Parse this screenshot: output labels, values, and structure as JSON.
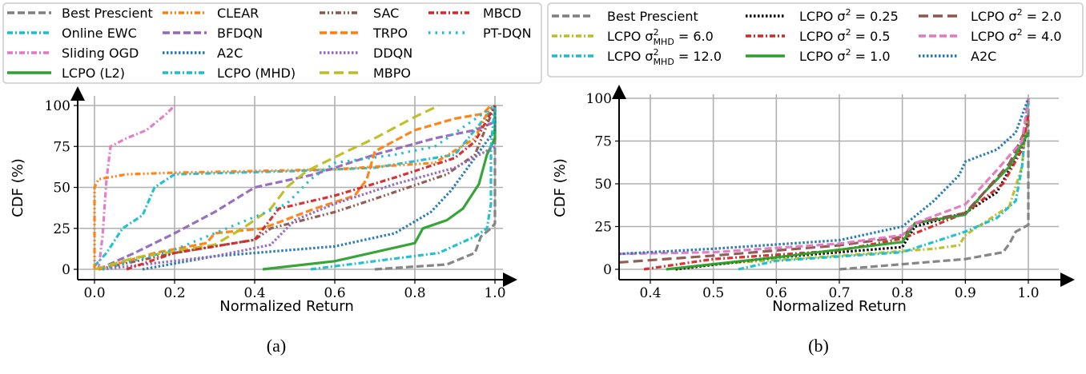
{
  "chart_data": [
    {
      "type": "line",
      "caption": "(a)",
      "xlabel": "Normalized Return",
      "ylabel": "CDF (%)",
      "xlim": [
        -0.04,
        1.04
      ],
      "ylim": [
        0,
        100
      ],
      "xticks": [
        "0.0",
        "0.2",
        "0.4",
        "0.6",
        "0.8",
        "1.0"
      ],
      "yticks": [
        "0",
        "25",
        "50",
        "75",
        "100"
      ],
      "grid": true,
      "legend_position": "top",
      "series": [
        {
          "name": "Best Prescient",
          "color": "#7f7f7f",
          "style": "dashed",
          "points": [
            [
              0.7,
              0
            ],
            [
              0.88,
              3
            ],
            [
              0.95,
              10
            ],
            [
              0.965,
              20
            ],
            [
              0.99,
              25
            ],
            [
              1.0,
              28
            ],
            [
              1.0,
              100
            ]
          ]
        },
        {
          "name": "Online EWC",
          "color": "#17becf",
          "style": "dashdot",
          "points": [
            [
              0.0,
              2
            ],
            [
              0.03,
              10
            ],
            [
              0.07,
              25
            ],
            [
              0.12,
              33
            ],
            [
              0.15,
              50
            ],
            [
              0.2,
              58
            ],
            [
              0.5,
              60
            ],
            [
              0.7,
              62
            ],
            [
              0.9,
              70
            ],
            [
              1.0,
              100
            ]
          ]
        },
        {
          "name": "Sliding OGD",
          "color": "#e377c2",
          "style": "dashdot",
          "points": [
            [
              0.01,
              0
            ],
            [
              0.02,
              20
            ],
            [
              0.03,
              55
            ],
            [
              0.04,
              75
            ],
            [
              0.08,
              80
            ],
            [
              0.13,
              85
            ],
            [
              0.18,
              95
            ],
            [
              0.2,
              100
            ]
          ]
        },
        {
          "name": "LCPO (L2)",
          "color": "#2ca02c",
          "style": "solid",
          "points": [
            [
              0.42,
              0
            ],
            [
              0.6,
              5
            ],
            [
              0.8,
              16
            ],
            [
              0.82,
              25
            ],
            [
              0.88,
              30
            ],
            [
              0.92,
              37
            ],
            [
              0.96,
              52
            ],
            [
              0.98,
              70
            ],
            [
              1.0,
              80
            ],
            [
              1.0,
              100
            ]
          ]
        },
        {
          "name": "CLEAR",
          "color": "#ff7f0e",
          "style": "dashdotdot",
          "points": [
            [
              0.0,
              0
            ],
            [
              0.0,
              50
            ],
            [
              0.01,
              55
            ],
            [
              0.08,
              58
            ],
            [
              0.2,
              59
            ],
            [
              0.6,
              61
            ],
            [
              0.85,
              65
            ],
            [
              0.95,
              80
            ],
            [
              0.99,
              100
            ]
          ]
        },
        {
          "name": "BFDQN",
          "color": "#9467bd",
          "style": "dashed",
          "points": [
            [
              0.01,
              0
            ],
            [
              0.1,
              10
            ],
            [
              0.2,
              22
            ],
            [
              0.3,
              35
            ],
            [
              0.4,
              50
            ],
            [
              0.55,
              58
            ],
            [
              0.7,
              70
            ],
            [
              0.85,
              80
            ],
            [
              0.95,
              85
            ],
            [
              1.0,
              90
            ]
          ]
        },
        {
          "name": "A2C",
          "color": "#1f77b4",
          "style": "dotted",
          "points": [
            [
              0.12,
              0
            ],
            [
              0.3,
              8
            ],
            [
              0.4,
              10
            ],
            [
              0.6,
              14
            ],
            [
              0.75,
              22
            ],
            [
              0.84,
              35
            ],
            [
              0.89,
              48
            ],
            [
              0.92,
              58
            ],
            [
              1.0,
              85
            ],
            [
              1.0,
              100
            ]
          ]
        },
        {
          "name": "LCPO (MHD)",
          "color": "#17becf",
          "style": "dashdot",
          "points": [
            [
              0.54,
              0
            ],
            [
              0.7,
              5
            ],
            [
              0.86,
              10
            ],
            [
              0.95,
              20
            ],
            [
              0.98,
              25
            ],
            [
              0.99,
              40
            ],
            [
              0.99,
              75
            ],
            [
              1.0,
              100
            ]
          ]
        },
        {
          "name": "SAC",
          "color": "#8c564b",
          "style": "dashdotdot",
          "points": [
            [
              0.01,
              0
            ],
            [
              0.2,
              10
            ],
            [
              0.4,
              18
            ],
            [
              0.44,
              25
            ],
            [
              0.6,
              35
            ],
            [
              0.7,
              43
            ],
            [
              0.88,
              58
            ],
            [
              0.95,
              70
            ],
            [
              1.0,
              100
            ]
          ]
        },
        {
          "name": "TRPO",
          "color": "#ff7f0e",
          "style": "dashed",
          "points": [
            [
              0.01,
              0
            ],
            [
              0.15,
              10
            ],
            [
              0.28,
              16
            ],
            [
              0.3,
              22
            ],
            [
              0.42,
              25
            ],
            [
              0.55,
              37
            ],
            [
              0.65,
              45
            ],
            [
              0.68,
              55
            ],
            [
              0.7,
              72
            ],
            [
              0.8,
              85
            ],
            [
              0.9,
              92
            ],
            [
              0.97,
              95
            ],
            [
              0.99,
              100
            ]
          ]
        },
        {
          "name": "DDQN",
          "color": "#9467bd",
          "style": "dotted",
          "points": [
            [
              0.02,
              0
            ],
            [
              0.3,
              8
            ],
            [
              0.44,
              15
            ],
            [
              0.5,
              30
            ],
            [
              0.6,
              40
            ],
            [
              0.75,
              52
            ],
            [
              0.9,
              62
            ],
            [
              1.0,
              75
            ]
          ]
        },
        {
          "name": "MBPO",
          "color": "#bcbd22",
          "style": "longdash",
          "points": [
            [
              0.0,
              0
            ],
            [
              0.1,
              7
            ],
            [
              0.3,
              15
            ],
            [
              0.37,
              25
            ],
            [
              0.44,
              37
            ],
            [
              0.48,
              50
            ],
            [
              0.53,
              60
            ],
            [
              0.63,
              72
            ],
            [
              0.7,
              80
            ],
            [
              0.8,
              93
            ],
            [
              0.86,
              100
            ]
          ]
        },
        {
          "name": "MBCD",
          "color": "#d62728",
          "style": "dashdot",
          "points": [
            [
              0.08,
              0
            ],
            [
              0.2,
              10
            ],
            [
              0.4,
              18
            ],
            [
              0.46,
              37
            ],
            [
              0.6,
              45
            ],
            [
              0.75,
              56
            ],
            [
              0.9,
              68
            ],
            [
              0.95,
              78
            ],
            [
              1.0,
              100
            ]
          ]
        },
        {
          "name": "PT-DQN",
          "color": "#17becf",
          "style": "sparsedot",
          "points": [
            [
              0.02,
              0
            ],
            [
              0.2,
              12
            ],
            [
              0.33,
              25
            ],
            [
              0.48,
              40
            ],
            [
              0.54,
              55
            ],
            [
              0.6,
              65
            ],
            [
              0.75,
              70
            ],
            [
              0.85,
              75
            ],
            [
              1.0,
              100
            ]
          ]
        }
      ]
    },
    {
      "type": "line",
      "caption": "(b)",
      "xlabel": "Normalized Return",
      "ylabel": "CDF (%)",
      "xlim": [
        0.35,
        1.05
      ],
      "ylim": [
        0,
        100
      ],
      "xticks": [
        "0.4",
        "0.5",
        "0.6",
        "0.7",
        "0.8",
        "0.9",
        "1.0"
      ],
      "yticks": [
        "0",
        "25",
        "50",
        "75",
        "100"
      ],
      "grid": true,
      "legend_position": "top",
      "series": [
        {
          "name": "Best Prescient",
          "color": "#7f7f7f",
          "style": "dashed",
          "points": [
            [
              0.7,
              0
            ],
            [
              0.8,
              3
            ],
            [
              0.9,
              6
            ],
            [
              0.96,
              10
            ],
            [
              0.97,
              15
            ],
            [
              0.98,
              22
            ],
            [
              1.0,
              26
            ],
            [
              1.0,
              100
            ]
          ]
        },
        {
          "name": "LCPO σ²MHD = 6.0",
          "label": {
            "pre": "LCPO σ",
            "sup": "2",
            "sub": "MHD",
            "post": " = 6.0"
          },
          "color": "#bcbd22",
          "style": "dashdot",
          "points": [
            [
              0.44,
              0
            ],
            [
              0.5,
              3
            ],
            [
              0.7,
              8
            ],
            [
              0.85,
              12
            ],
            [
              0.89,
              14
            ],
            [
              0.9,
              20
            ],
            [
              0.97,
              37
            ],
            [
              0.99,
              60
            ],
            [
              1.0,
              100
            ]
          ]
        },
        {
          "name": "LCPO σ²MHD = 12.0",
          "label": {
            "pre": "LCPO σ",
            "sup": "2",
            "sub": "MHD",
            "post": " = 12.0"
          },
          "color": "#17becf",
          "style": "dashdot",
          "points": [
            [
              0.54,
              0
            ],
            [
              0.6,
              5
            ],
            [
              0.8,
              10
            ],
            [
              0.9,
              22
            ],
            [
              0.95,
              30
            ],
            [
              0.98,
              40
            ],
            [
              0.99,
              60
            ],
            [
              1.0,
              100
            ]
          ]
        },
        {
          "name": "LCPO σ² = 0.25",
          "label": {
            "pre": "LCPO σ",
            "sup": "2",
            "sub": "",
            "post": " = 0.25"
          },
          "color": "#000000",
          "style": "dotted",
          "points": [
            [
              0.44,
              0
            ],
            [
              0.6,
              7
            ],
            [
              0.8,
              13
            ],
            [
              0.82,
              25
            ],
            [
              0.9,
              33
            ],
            [
              0.95,
              45
            ],
            [
              0.98,
              65
            ],
            [
              1.0,
              80
            ]
          ]
        },
        {
          "name": "LCPO σ² = 0.5",
          "label": {
            "pre": "LCPO σ",
            "sup": "2",
            "sub": "",
            "post": " = 0.5"
          },
          "color": "#d62728",
          "style": "dashdot",
          "points": [
            [
              0.39,
              0
            ],
            [
              0.5,
              6
            ],
            [
              0.7,
              11
            ],
            [
              0.8,
              18
            ],
            [
              0.9,
              33
            ],
            [
              0.96,
              50
            ],
            [
              0.99,
              70
            ],
            [
              1.0,
              90
            ]
          ]
        },
        {
          "name": "LCPO σ² = 1.0",
          "label": {
            "pre": "LCPO σ",
            "sup": "2",
            "sub": "",
            "post": " = 1.0"
          },
          "color": "#2ca02c",
          "style": "solid",
          "points": [
            [
              0.425,
              0
            ],
            [
              0.6,
              7
            ],
            [
              0.8,
              16
            ],
            [
              0.82,
              27
            ],
            [
              0.9,
              32
            ],
            [
              0.93,
              45
            ],
            [
              0.97,
              60
            ],
            [
              1.0,
              80
            ]
          ]
        },
        {
          "name": "LCPO σ² = 2.0",
          "label": {
            "pre": "LCPO σ",
            "sup": "2",
            "sub": "",
            "post": " = 2.0"
          },
          "color": "#8c564b",
          "style": "longdash",
          "points": [
            [
              0.35,
              4
            ],
            [
              0.5,
              8
            ],
            [
              0.7,
              14
            ],
            [
              0.8,
              19
            ],
            [
              0.82,
              27
            ],
            [
              0.9,
              33
            ],
            [
              0.93,
              45
            ],
            [
              0.97,
              62
            ],
            [
              1.0,
              85
            ]
          ]
        },
        {
          "name": "LCPO σ² = 4.0",
          "label": {
            "pre": "LCPO σ",
            "sup": "2",
            "sub": "",
            "post": " = 4.0"
          },
          "color": "#e377c2",
          "style": "dashed",
          "points": [
            [
              0.35,
              9
            ],
            [
              0.5,
              10
            ],
            [
              0.7,
              15
            ],
            [
              0.8,
              20
            ],
            [
              0.82,
              27
            ],
            [
              0.9,
              38
            ],
            [
              0.95,
              58
            ],
            [
              0.99,
              75
            ],
            [
              1.0,
              100
            ]
          ]
        },
        {
          "name": "A2C",
          "color": "#1f77b4",
          "style": "dotted",
          "points": [
            [
              0.35,
              9
            ],
            [
              0.5,
              12
            ],
            [
              0.7,
              17
            ],
            [
              0.8,
              25
            ],
            [
              0.85,
              40
            ],
            [
              0.89,
              55
            ],
            [
              0.9,
              63
            ],
            [
              0.95,
              70
            ],
            [
              0.98,
              80
            ],
            [
              1.0,
              100
            ]
          ]
        }
      ]
    }
  ]
}
